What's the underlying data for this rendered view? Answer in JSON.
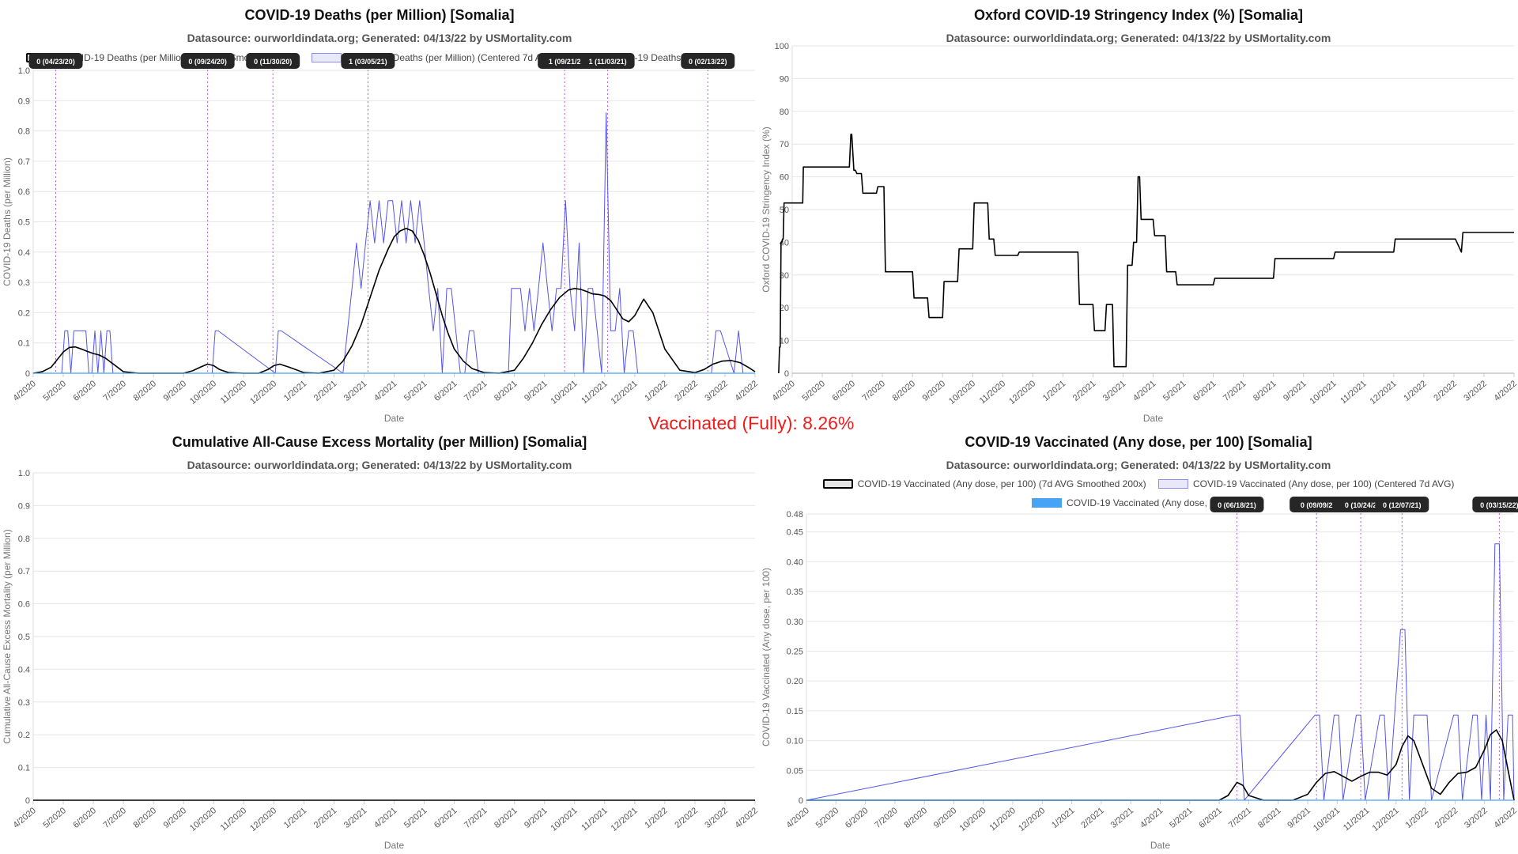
{
  "vaccinated_text": "Vaccinated (Fully): 8.26%",
  "chart_data": [
    {
      "type": "line",
      "title": "COVID-19 Deaths (per Million) [Somalia]",
      "subtitle": "Datasource: ourworldindata.org; Generated: 04/13/22 by USMortality.com",
      "xlabel": "Date",
      "ylabel": "COVID-19 Deaths (per Million)",
      "ylim": [
        0,
        1.0
      ],
      "yticks": [
        "0",
        "0.1",
        "0.2",
        "0.3",
        "0.4",
        "0.5",
        "0.6",
        "0.7",
        "0.8",
        "0.9",
        "1.0"
      ],
      "xticks": [
        "4/2020",
        "5/2020",
        "6/2020",
        "7/2020",
        "8/2020",
        "9/2020",
        "10/2020",
        "11/2020",
        "12/2020",
        "1/2021",
        "2/2021",
        "3/2021",
        "4/2021",
        "5/2021",
        "6/2021",
        "7/2021",
        "8/2021",
        "9/2021",
        "10/2021",
        "11/2021",
        "12/2021",
        "1/2022",
        "2/2022",
        "3/2022",
        "4/2022"
      ],
      "legend": [
        "COVID-19 Deaths (per Million) (7d AVG Smoothed 200x)",
        "COVID-19 Deaths (per Million) (Centered 7d AVG)",
        "COVID-19 Deaths (per Million)"
      ],
      "annotations": [
        {
          "label": "0 (04/23/20)",
          "x": 0.75
        },
        {
          "label": "0 (09/24/20)",
          "x": 5.8
        },
        {
          "label": "0 (11/30/20)",
          "x": 7.97
        },
        {
          "label": "1 (03/05/21)",
          "x": 11.13
        },
        {
          "label": "1 (09/21/2",
          "x": 17.67
        },
        {
          "label": "1 (11/03/21)",
          "x": 19.1
        },
        {
          "label": "0 (02/13/22)",
          "x": 22.43
        }
      ],
      "series": [
        {
          "name": "COVID-19 Deaths (per Million) (7d AVG Smoothed 200x)",
          "x": [
            0,
            0.3,
            0.6,
            0.8,
            1,
            1.2,
            1.4,
            1.6,
            1.8,
            2,
            2.2,
            2.4,
            2.6,
            2.8,
            3,
            3.5,
            4,
            5,
            5.3,
            5.6,
            5.8,
            6,
            6.2,
            6.5,
            7,
            7.5,
            7.8,
            8,
            8.2,
            8.5,
            9,
            9.5,
            10,
            10.3,
            10.6,
            10.9,
            11.2,
            11.5,
            11.8,
            12,
            12.2,
            12.4,
            12.6,
            12.8,
            13,
            13.2,
            13.4,
            13.6,
            13.8,
            14,
            14.3,
            14.6,
            15,
            15.5,
            16,
            16.3,
            16.6,
            16.9,
            17.2,
            17.5,
            17.8,
            18,
            18.2,
            18.4,
            18.6,
            18.8,
            19,
            19.2,
            19.4,
            19.6,
            19.8,
            20,
            20.3,
            20.6,
            21,
            21.5,
            22,
            22.3,
            22.6,
            22.9,
            23.2,
            23.5,
            23.8,
            24
          ],
          "y": [
            0,
            0.005,
            0.02,
            0.045,
            0.07,
            0.085,
            0.087,
            0.08,
            0.072,
            0.065,
            0.06,
            0.05,
            0.035,
            0.02,
            0.005,
            0,
            0,
            0,
            0.008,
            0.022,
            0.03,
            0.025,
            0.012,
            0.002,
            0,
            0,
            0.012,
            0.025,
            0.03,
            0.02,
            0.002,
            0,
            0.01,
            0.04,
            0.09,
            0.16,
            0.25,
            0.34,
            0.41,
            0.45,
            0.47,
            0.478,
            0.47,
            0.44,
            0.39,
            0.33,
            0.26,
            0.19,
            0.13,
            0.08,
            0.04,
            0.015,
            0.002,
            0,
            0.01,
            0.05,
            0.1,
            0.16,
            0.21,
            0.25,
            0.275,
            0.28,
            0.277,
            0.27,
            0.262,
            0.26,
            0.255,
            0.24,
            0.21,
            0.18,
            0.17,
            0.19,
            0.245,
            0.2,
            0.08,
            0.01,
            0.002,
            0.012,
            0.03,
            0.04,
            0.042,
            0.035,
            0.018,
            0.005
          ]
        },
        {
          "name": "COVID-19 Deaths (per Million) (Centered 7d AVG)",
          "x": [
            0.95,
            1.05,
            1.15,
            1.25,
            1.35,
            1.45,
            1.55,
            1.65,
            1.75,
            1.85,
            1.95,
            2.05,
            2.15,
            2.25,
            2.35,
            2.45,
            2.55,
            2.65,
            2.75,
            5.95,
            6.05,
            6.15,
            8.05,
            8.15,
            8.25,
            10.3,
            10.45,
            10.6,
            10.75,
            10.9,
            11.05,
            11.2,
            11.35,
            11.5,
            11.65,
            11.8,
            11.95,
            12.1,
            12.25,
            12.4,
            12.55,
            12.7,
            12.85,
            13,
            13.15,
            13.3,
            13.45,
            13.6,
            13.75,
            13.9,
            14.05,
            14.2,
            14.35,
            14.5,
            14.65,
            14.8,
            14.95,
            15.8,
            15.9,
            16.05,
            16.2,
            16.35,
            16.5,
            16.65,
            16.8,
            16.95,
            17.1,
            17.25,
            17.4,
            17.55,
            17.7,
            17.85,
            18.0,
            18.15,
            18.3,
            18.45,
            18.6,
            18.75,
            18.9,
            19.05,
            19.2,
            19.35,
            19.5,
            19.65,
            19.8,
            19.95,
            20.1,
            22.55,
            22.7,
            22.85,
            23.3,
            23.45,
            23.6
          ],
          "y": [
            0,
            0.14,
            0.14,
            0,
            0.14,
            0.14,
            0.14,
            0.14,
            0.14,
            0,
            0,
            0.14,
            0,
            0.14,
            0,
            0.14,
            0.14,
            0,
            0,
            0,
            0.14,
            0.14,
            0,
            0.14,
            0.14,
            0,
            0.14,
            0.28,
            0.43,
            0.28,
            0.43,
            0.57,
            0.43,
            0.57,
            0.43,
            0.57,
            0.57,
            0.43,
            0.57,
            0.43,
            0.57,
            0.43,
            0.57,
            0.43,
            0.28,
            0.14,
            0.28,
            0,
            0.28,
            0.28,
            0.14,
            0,
            0,
            0.14,
            0.14,
            0,
            0,
            0,
            0.28,
            0.28,
            0.28,
            0.14,
            0.28,
            0.14,
            0.28,
            0.43,
            0.28,
            0.14,
            0.28,
            0.28,
            0.57,
            0.28,
            0.14,
            0.43,
            0,
            0.28,
            0.28,
            0.14,
            0,
            0.86,
            0.14,
            0.14,
            0.28,
            0,
            0.14,
            0.14,
            0,
            0,
            0.14,
            0.14,
            0,
            0.14,
            0
          ]
        },
        {
          "name": "COVID-19 Deaths (per Million)",
          "x": [
            0,
            24
          ],
          "y": [
            0,
            0
          ]
        }
      ]
    },
    {
      "type": "line",
      "title": "Oxford COVID-19 Stringency Index (%) [Somalia]",
      "subtitle": "Datasource: ourworldindata.org; Generated: 04/13/22 by USMortality.com",
      "xlabel": "Date",
      "ylabel": "Oxford COVID-19 Stringency Index (%)",
      "ylim": [
        0,
        100
      ],
      "yticks": [
        "0",
        "10",
        "20",
        "30",
        "40",
        "50",
        "60",
        "70",
        "80",
        "90",
        "100"
      ],
      "xticks": [
        "4/2020",
        "5/2020",
        "6/2020",
        "7/2020",
        "8/2020",
        "9/2020",
        "10/2020",
        "11/2020",
        "12/2020",
        "1/2021",
        "2/2021",
        "3/2021",
        "4/2021",
        "5/2021",
        "6/2021",
        "7/2021",
        "8/2021",
        "9/2021",
        "10/2021",
        "11/2021",
        "12/2021",
        "1/2022",
        "2/2022",
        "3/2022",
        "4/2022"
      ],
      "series": [
        {
          "name": "",
          "x": [
            -0.45,
            -0.42,
            -0.4,
            -0.37,
            -0.35,
            -0.32,
            -0.3,
            -0.27,
            0.35,
            0.37,
            1.9,
            1.95,
            1.98,
            2.05,
            2.1,
            2.15,
            2.3,
            2.35,
            2.8,
            2.85,
            3.05,
            3.1,
            4.0,
            4.05,
            4.5,
            4.55,
            5.0,
            5.05,
            5.5,
            5.55,
            6.0,
            6.05,
            6.5,
            6.55,
            6.7,
            6.75,
            7.5,
            7.55,
            9.5,
            9.55,
            10.0,
            10.05,
            10.4,
            10.45,
            10.65,
            10.7,
            11.1,
            11.15,
            11.3,
            11.35,
            11.45,
            11.5,
            11.55,
            11.6,
            11.65,
            11.7,
            12.0,
            12.05,
            12.4,
            12.45,
            12.75,
            12.8,
            14.0,
            14.05,
            16.0,
            16.05,
            18.0,
            18.05,
            20.0,
            20.05,
            22.0,
            22.05,
            22.25,
            22.3,
            24.0
          ],
          "y": [
            0,
            8,
            8,
            40,
            40,
            41,
            41,
            52,
            52,
            63,
            63,
            73,
            73,
            62,
            62,
            61,
            61,
            55,
            55,
            57,
            57,
            31,
            31,
            23,
            23,
            17,
            17,
            28,
            28,
            38,
            38,
            52,
            52,
            41,
            41,
            36,
            36,
            37,
            37,
            21,
            21,
            13,
            13,
            21,
            21,
            2,
            2,
            33,
            33,
            40,
            40,
            60,
            60,
            47,
            47,
            47,
            47,
            42,
            42,
            31,
            31,
            27,
            27,
            29,
            29,
            35,
            35,
            37,
            37,
            41,
            41,
            41,
            37,
            43,
            43
          ]
        }
      ]
    },
    {
      "type": "line",
      "title": "Cumulative All-Cause Excess Mortality (per Million) [Somalia]",
      "subtitle": "Datasource: ourworldindata.org; Generated: 04/13/22 by USMortality.com",
      "xlabel": "Date",
      "ylabel": "Cumulative All-Cause Excess Mortality (per Million)",
      "ylim": [
        0,
        1.0
      ],
      "yticks": [
        "0",
        "0.1",
        "0.2",
        "0.3",
        "0.4",
        "0.5",
        "0.6",
        "0.7",
        "0.8",
        "0.9",
        "1.0"
      ],
      "xticks": [
        "4/2020",
        "5/2020",
        "6/2020",
        "7/2020",
        "8/2020",
        "9/2020",
        "10/2020",
        "11/2020",
        "12/2020",
        "1/2021",
        "2/2021",
        "3/2021",
        "4/2021",
        "5/2021",
        "6/2021",
        "7/2021",
        "8/2021",
        "9/2021",
        "10/2021",
        "11/2021",
        "12/2021",
        "1/2022",
        "2/2022",
        "3/2022",
        "4/2022"
      ],
      "series": [
        {
          "name": "",
          "x": [
            0,
            24
          ],
          "y": [
            0,
            0
          ]
        }
      ]
    },
    {
      "type": "line",
      "title": "COVID-19 Vaccinated (Any dose, per 100) [Somalia]",
      "subtitle": "Datasource: ourworldindata.org; Generated: 04/13/22 by USMortality.com",
      "xlabel": "Date",
      "ylabel": "COVID-19 Vaccinated (Any dose, per 100)",
      "ylim": [
        0,
        0.48
      ],
      "yticks": [
        "0",
        "0.05",
        "0.10",
        "0.15",
        "0.20",
        "0.25",
        "0.30",
        "0.35",
        "0.40",
        "0.45",
        "0.48"
      ],
      "ytick_values": [
        0,
        0.05,
        0.1,
        0.15,
        0.2,
        0.25,
        0.3,
        0.35,
        0.4,
        0.45,
        0.48
      ],
      "xticks": [
        "4/2020",
        "5/2020",
        "6/2020",
        "7/2020",
        "8/2020",
        "9/2020",
        "10/2020",
        "11/2020",
        "12/2020",
        "1/2021",
        "2/2021",
        "3/2021",
        "4/2021",
        "5/2021",
        "6/2021",
        "7/2021",
        "8/2021",
        "9/2021",
        "10/2021",
        "11/2021",
        "12/2021",
        "1/2022",
        "2/2022",
        "3/2022",
        "4/2022"
      ],
      "legend": [
        "COVID-19 Vaccinated (Any dose, per 100) (7d AVG Smoothed 200x)",
        "COVID-19 Vaccinated (Any dose, per 100) (Centered 7d AVG)",
        "COVID-19 Vaccinated (Any dose, per 100)"
      ],
      "annotations": [
        {
          "label": "0 (06/18/21)",
          "x": 14.6
        },
        {
          "label": "0 (09/09/2",
          "x": 17.3
        },
        {
          "label": "0 (10/24/2",
          "x": 18.8
        },
        {
          "label": "0 (12/07/21)",
          "x": 20.2
        },
        {
          "label": "0 (03/15/22)",
          "x": 23.5
        }
      ],
      "series": [
        {
          "name": "COVID-19 Vaccinated (Any dose, per 100) (7d AVG Smoothed 200x)",
          "x": [
            0,
            14.0,
            14.3,
            14.6,
            14.8,
            15.0,
            15.5,
            16.5,
            17.0,
            17.3,
            17.6,
            17.9,
            18.2,
            18.5,
            18.8,
            19.1,
            19.4,
            19.7,
            20.0,
            20.2,
            20.4,
            20.6,
            20.9,
            21.2,
            21.5,
            21.8,
            22.1,
            22.4,
            22.7,
            23.0,
            23.2,
            23.4,
            23.6,
            23.8,
            24.0
          ],
          "y": [
            0,
            0,
            0.008,
            0.03,
            0.025,
            0.008,
            0,
            0,
            0.01,
            0.03,
            0.045,
            0.048,
            0.04,
            0.032,
            0.04,
            0.047,
            0.047,
            0.042,
            0.06,
            0.09,
            0.108,
            0.1,
            0.06,
            0.02,
            0.01,
            0.03,
            0.045,
            0.047,
            0.055,
            0.085,
            0.11,
            0.118,
            0.1,
            0.05,
            0.0
          ]
        },
        {
          "name": "COVID-19 Vaccinated (Any dose, per 100) (Centered 7d AVG)",
          "x": [
            0,
            14.55,
            14.7,
            14.85,
            17.25,
            17.4,
            17.55,
            17.9,
            18.05,
            18.2,
            18.65,
            18.8,
            18.95,
            19.45,
            19.6,
            19.75,
            20.15,
            20.3,
            20.45,
            20.6,
            20.75,
            20.9,
            21.05,
            21.2,
            21.95,
            22.1,
            22.25,
            22.6,
            22.75,
            22.9,
            23.05,
            23.2,
            23.35,
            23.5,
            23.65,
            23.8,
            23.95,
            24.0
          ],
          "y": [
            0,
            0.143,
            0.143,
            0,
            0.143,
            0.143,
            0,
            0.143,
            0.143,
            0,
            0.143,
            0.143,
            0,
            0.143,
            0.143,
            0,
            0.286,
            0.286,
            0,
            0.143,
            0.143,
            0.143,
            0.143,
            0,
            0.143,
            0.143,
            0,
            0.143,
            0.143,
            0,
            0.143,
            0,
            0.43,
            0.43,
            0,
            0.143,
            0.143,
            0
          ]
        },
        {
          "name": "COVID-19 Vaccinated (Any dose, per 100)",
          "x": [
            0,
            24
          ],
          "y": [
            0,
            0
          ]
        }
      ]
    }
  ]
}
